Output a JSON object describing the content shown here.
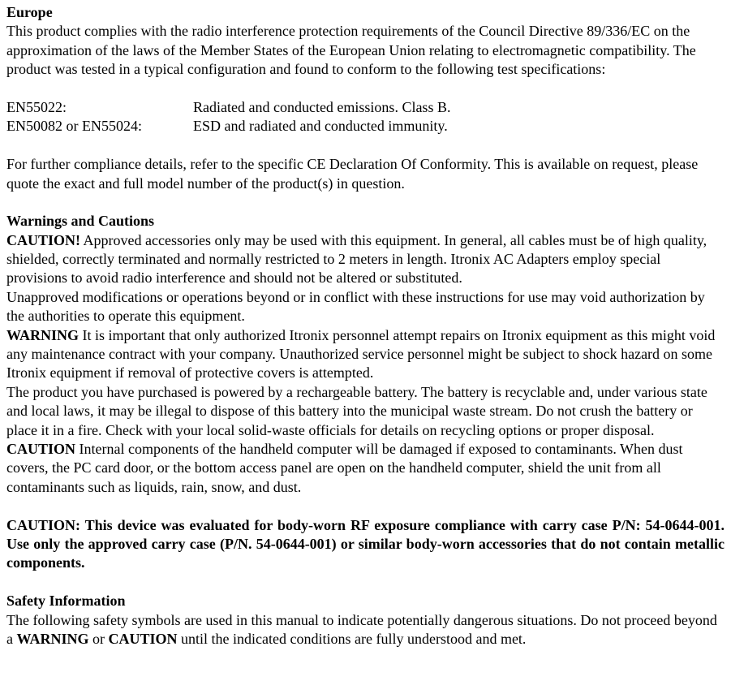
{
  "europe": {
    "title": "Europe",
    "intro": "This product complies with the radio interference protection requirements of the Council Directive 89/336/EC on the approximation of the laws of the Member States of the European Union relating to electromagnetic compatibility. The product was tested in a typical configuration and found to conform to the following test specifications:",
    "specs": [
      {
        "label": "EN55022:",
        "value": "Radiated and conducted emissions. Class B."
      },
      {
        "label": "EN50082 or EN55024:",
        "value": "ESD and radiated and conducted immunity."
      }
    ],
    "footer": "For further compliance details, refer to the specific CE Declaration Of Conformity. This is available on request, please quote the exact and full model number of the product(s) in question."
  },
  "warnings": {
    "title": "Warnings and Cautions",
    "caution1_label": "CAUTION!",
    "caution1_text": "  Approved accessories only may be used with this equipment. In general, all cables must be of high quality, shielded, correctly terminated and normally restricted to 2 meters in length. Itronix AC Adapters employ special provisions to avoid radio interference and should not be altered or substituted.",
    "caution1_para2": "Unapproved modifications or operations beyond or in conflict with these instructions for use may void authorization by the authorities to operate this equipment.",
    "warning_label": "WARNING",
    "warning_text": "  It is important that only authorized Itronix personnel attempt repairs on Itronix equipment as this might void any maintenance contract with your company. Unauthorized service personnel might be subject to shock hazard on some Itronix equipment if removal of protective covers is attempted.",
    "battery_text": "The product you have purchased is powered by a rechargeable battery. The battery is recyclable and, under various state and local laws, it may be illegal to dispose of this battery into the municipal waste stream. Do not crush the battery or place it in a fire. Check with your local solid-waste officials for details on recycling options or proper disposal.",
    "caution2_label": "CAUTION",
    "caution2_text": "  Internal components of the handheld computer will be damaged if exposed to contaminants. When dust covers, the PC card door, or the bottom access panel are open on the handheld computer, shield the unit from all contaminants such as liquids, rain, snow, and dust.",
    "rf_caution": "CAUTION: This device was evaluated for body-worn RF exposure compliance with carry case P/N: 54-0644-001. Use only the approved carry case (P/N. 54-0644-001) or similar body-worn accessories that do not contain metallic components."
  },
  "safety": {
    "title": "Safety Information",
    "intro_pre": "The following safety symbols are used in this manual to indicate potentially dangerous situations. Do not proceed beyond a ",
    "warning_word": "WARNING",
    "intro_mid": " or ",
    "caution_word": "CAUTION",
    "intro_post": " until the indicated conditions are fully understood and met."
  }
}
